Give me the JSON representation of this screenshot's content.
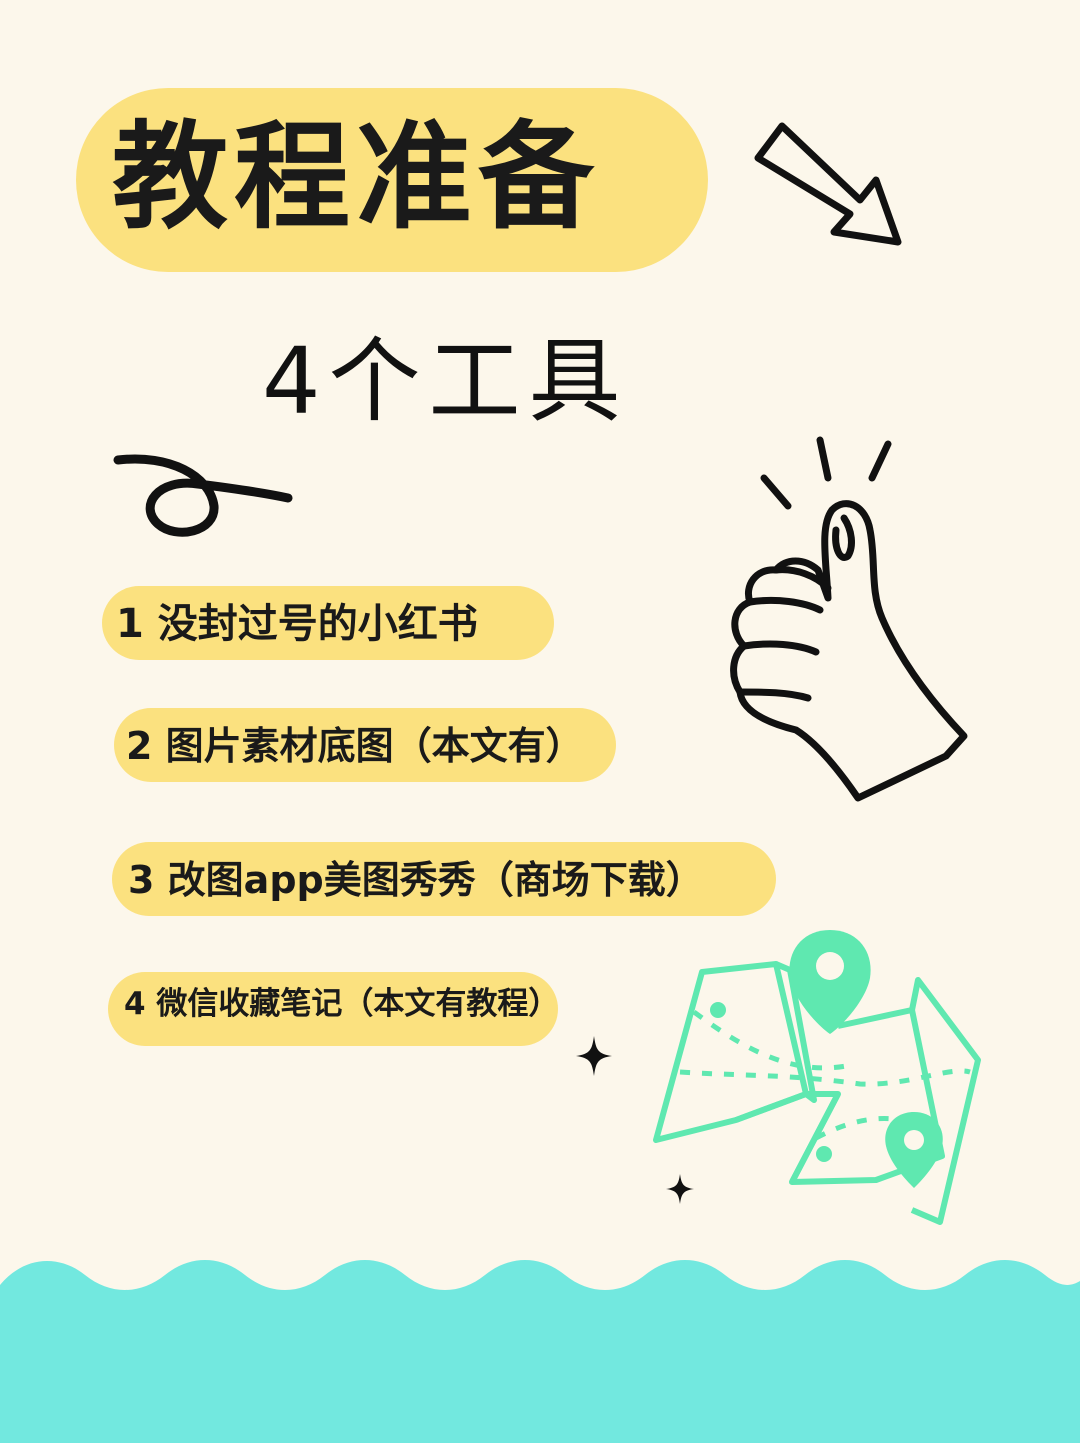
{
  "title": "教程准备",
  "subtitle": "4个工具",
  "items": [
    {
      "label": "1 没封过号的小红书"
    },
    {
      "label": "2 图片素材底图（本文有）"
    },
    {
      "label": "3 改图app美图秀秀（商场下载）"
    },
    {
      "label": "4  微信收藏笔记（本文有教程）"
    }
  ],
  "colors": {
    "background": "#FCF7EB",
    "highlight": "#FBE17F",
    "map": "#5FE8B0",
    "waves": "#72E8DF"
  },
  "icons": [
    "arrow-icon",
    "swirl-icon",
    "thumbs-up-icon",
    "map-icon",
    "sparkle-icon"
  ]
}
